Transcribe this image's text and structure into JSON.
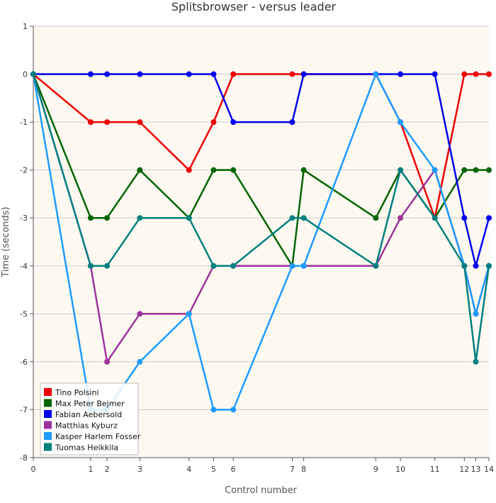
{
  "chart_data": {
    "type": "line",
    "title": "Splitsbrowser - versus leader",
    "xlabel": "Control number",
    "ylabel": "Time (seconds)",
    "x": [
      0,
      1,
      2,
      3,
      4,
      5,
      6,
      7,
      8,
      9,
      10,
      11,
      12,
      13,
      14
    ],
    "x_tick_labels": [
      "0",
      "1",
      "2",
      "3",
      "4",
      "5",
      "6",
      "7",
      "8",
      "9",
      "10",
      "11",
      "12",
      "13",
      "14"
    ],
    "x_tick_positions": [
      0,
      3.5,
      4.5,
      6.5,
      9.5,
      11,
      12.2,
      15.8,
      16.5,
      20.9,
      22.4,
      24.5,
      26.3,
      27.0,
      27.8
    ],
    "x_range": [
      0,
      27.8
    ],
    "ylim": [
      -8,
      1
    ],
    "y_ticks": [
      1,
      0,
      -1,
      -2,
      -3,
      -4,
      -5,
      -6,
      -7,
      -8
    ],
    "grid": true,
    "legend_position": "bottom-left",
    "background_color": "#fdf9f0",
    "series": [
      {
        "name": "Tino Polsini",
        "color": "#ee0000",
        "values": [
          0,
          -1,
          -1,
          -1,
          -2,
          -1,
          0,
          0,
          0,
          0,
          -1,
          -3,
          0,
          0,
          0
        ]
      },
      {
        "name": "Max Peter Bejmer",
        "color": "#006400",
        "values": [
          0,
          -3,
          -3,
          -2,
          -3,
          -2,
          -2,
          -4,
          -2,
          -3,
          -2,
          -3,
          -2,
          -2,
          -2
        ]
      },
      {
        "name": "Fabian Aebersold",
        "color": "#0000ee",
        "values": [
          0,
          0,
          0,
          0,
          0,
          0,
          -1,
          -1,
          0,
          0,
          0,
          0,
          -3,
          -4,
          -3
        ]
      },
      {
        "name": "Matthias Kyburz",
        "color": "#9b339b",
        "values": [
          0,
          -4,
          -6,
          -5,
          -5,
          -4,
          -4,
          -4,
          -4,
          -4,
          -3,
          -2,
          -4,
          -5,
          -4
        ]
      },
      {
        "name": "Kasper Harlem Fosser",
        "color": "#1e9bff",
        "values": [
          0,
          -7,
          -7,
          -6,
          -5,
          -7,
          -7,
          -4,
          -4,
          0,
          -1,
          -2,
          -4,
          -5,
          -4
        ]
      },
      {
        "name": "Tuomas Heikkila",
        "color": "#008080",
        "values": [
          0,
          -4,
          -4,
          -3,
          -3,
          -4,
          -4,
          -3,
          -3,
          -4,
          -2,
          -3,
          -4,
          -6,
          -4
        ]
      }
    ]
  }
}
